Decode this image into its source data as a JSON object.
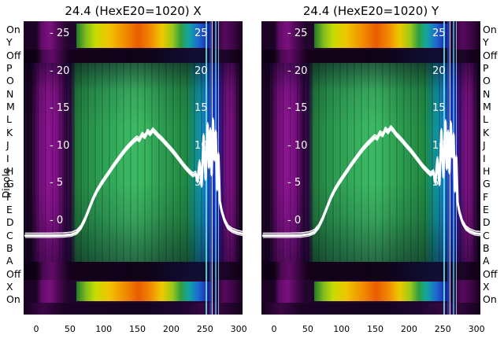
{
  "figure": {
    "left_axis_label": "Dipole",
    "row_labels": [
      "On",
      "Y",
      "Off",
      "P",
      "O",
      "N",
      "M",
      "L",
      "K",
      "J",
      "I",
      "H",
      "G",
      "F",
      "E",
      "D",
      "C",
      "B",
      "A",
      "Off",
      "X",
      "On"
    ],
    "background": "#ffffff"
  },
  "x_ticks": [
    "0",
    "50",
    "100",
    "150",
    "200",
    "250",
    "300"
  ],
  "inner_ticks_left": [
    "- 25",
    "- 20",
    "- 15",
    "- 10",
    "- 5",
    "- 0"
  ],
  "inner_ticks_right": [
    "25",
    "20",
    "15",
    "10",
    "5"
  ],
  "chart_data": [
    {
      "type": "heatmap",
      "title": "24.4 (HexE20=1020) X",
      "x_axis": {
        "ticks": [
          0,
          50,
          100,
          150,
          200,
          250,
          300
        ],
        "range": [
          -16,
          312
        ]
      },
      "inner_value_ticks": [
        25,
        20,
        15,
        10,
        5,
        0
      ],
      "row_categories_top_to_bottom": [
        "On",
        "Y",
        "Off",
        "P",
        "O",
        "N",
        "M",
        "L",
        "K",
        "J",
        "I",
        "H",
        "G",
        "F",
        "E",
        "D",
        "C",
        "B",
        "A",
        "Off",
        "X",
        "On"
      ],
      "palette": {
        "dark_purple": "#1a0322",
        "magenta_column": "#7c1080",
        "green_field": "#2fa455",
        "bright_green": "#3cba62",
        "teal": "#0f93a5",
        "blue": "#2336c4",
        "rainbow_band": [
          "#1f7a26",
          "#c8dc02",
          "#f0c400",
          "#e85c00",
          "#f0c400",
          "#9cc818",
          "#2f9e40",
          "#12a5a0",
          "#1b6ad0",
          "#2030b0"
        ],
        "overlay_line": "#ffffff"
      },
      "bands_top_to_bottom": [
        {
          "rows": "On/Y",
          "appearance": "bright rainbow band on dark purple"
        },
        {
          "rows": "Off",
          "appearance": "very dark"
        },
        {
          "rows": "P..A",
          "appearance": "green field, magenta edge columns, teal-blue striped region near x=240-270"
        },
        {
          "rows": "Off",
          "appearance": "very dark"
        },
        {
          "rows": "X",
          "appearance": "bright rainbow band"
        },
        {
          "rows": "On",
          "appearance": "dark purple"
        }
      ],
      "overlay_series": [
        {
          "name": "white-profile",
          "points": [
            [
              -16,
              -2
            ],
            [
              0,
              -2
            ],
            [
              20,
              -2
            ],
            [
              40,
              -1.95
            ],
            [
              52,
              -1.85
            ],
            [
              60,
              -1.55
            ],
            [
              66,
              -0.95
            ],
            [
              72,
              0.1
            ],
            [
              78,
              1.45
            ],
            [
              84,
              2.85
            ],
            [
              90,
              3.95
            ],
            [
              96,
              4.85
            ],
            [
              102,
              5.65
            ],
            [
              108,
              6.45
            ],
            [
              114,
              7.25
            ],
            [
              120,
              8.0
            ],
            [
              126,
              8.75
            ],
            [
              132,
              9.45
            ],
            [
              138,
              10.05
            ],
            [
              144,
              10.6
            ],
            [
              149,
              11.0
            ],
            [
              153,
              10.8
            ],
            [
              157,
              11.5
            ],
            [
              161,
              11.2
            ],
            [
              165,
              11.9
            ],
            [
              169,
              11.6
            ],
            [
              173,
              12.1
            ],
            [
              177,
              11.7
            ],
            [
              181,
              11.3
            ],
            [
              185,
              11.0
            ],
            [
              190,
              10.5
            ],
            [
              196,
              9.9
            ],
            [
              202,
              9.3
            ],
            [
              208,
              8.6
            ],
            [
              214,
              7.9
            ],
            [
              220,
              7.2
            ],
            [
              226,
              6.6
            ],
            [
              232,
              6.1
            ],
            [
              236,
              6.3
            ],
            [
              239,
              5.3
            ],
            [
              242,
              7.8
            ],
            [
              245,
              4.7
            ],
            [
              248,
              11.3
            ],
            [
              251,
              5.6
            ],
            [
              254,
              12.8
            ],
            [
              256,
              7.2
            ],
            [
              258,
              12.1
            ],
            [
              260,
              6.2
            ],
            [
              262,
              13.4
            ],
            [
              264,
              8.2
            ],
            [
              266,
              11.8
            ],
            [
              268,
              4.2
            ],
            [
              270,
              8.8
            ],
            [
              272,
              2.6
            ],
            [
              275,
              1.2
            ],
            [
              279,
              0.0
            ],
            [
              284,
              -0.9
            ],
            [
              290,
              -1.3
            ],
            [
              298,
              -1.6
            ],
            [
              308,
              -1.8
            ],
            [
              312,
              -1.8
            ]
          ]
        }
      ]
    },
    {
      "type": "heatmap",
      "title": "24.4 (HexE20=1020) Y",
      "x_axis": {
        "ticks": [
          0,
          50,
          100,
          150,
          200,
          250,
          300
        ],
        "range": [
          -16,
          312
        ]
      },
      "inner_value_ticks": [
        25,
        20,
        15,
        10,
        5,
        0
      ],
      "row_categories_top_to_bottom": [
        "On",
        "Y",
        "Off",
        "P",
        "O",
        "N",
        "M",
        "L",
        "K",
        "J",
        "I",
        "H",
        "G",
        "F",
        "E",
        "D",
        "C",
        "B",
        "A",
        "Off",
        "X",
        "On"
      ],
      "palette": {
        "dark_purple": "#1a0322",
        "magenta_column": "#7c1080",
        "green_field": "#2fa455",
        "bright_green": "#3cba62",
        "teal": "#0f93a5",
        "blue": "#2336c4",
        "rainbow_band": [
          "#1f7a26",
          "#c8dc02",
          "#f0c400",
          "#e85c00",
          "#f0c400",
          "#9cc818",
          "#2f9e40",
          "#12a5a0",
          "#1b6ad0",
          "#2030b0"
        ],
        "overlay_line": "#ffffff"
      },
      "bands_top_to_bottom": [
        {
          "rows": "On/Y",
          "appearance": "bright rainbow band on dark purple"
        },
        {
          "rows": "Off",
          "appearance": "very dark"
        },
        {
          "rows": "P..A",
          "appearance": "green field, magenta edge columns, teal-blue striped region near x=240-270"
        },
        {
          "rows": "Off",
          "appearance": "very dark"
        },
        {
          "rows": "X",
          "appearance": "bright rainbow band"
        },
        {
          "rows": "On",
          "appearance": "dark purple"
        }
      ],
      "overlay_series": [
        {
          "name": "white-profile",
          "points": [
            [
              -16,
              -2
            ],
            [
              0,
              -2
            ],
            [
              20,
              -2
            ],
            [
              40,
              -1.95
            ],
            [
              52,
              -1.8
            ],
            [
              60,
              -1.5
            ],
            [
              66,
              -0.85
            ],
            [
              72,
              0.25
            ],
            [
              78,
              1.6
            ],
            [
              84,
              3.0
            ],
            [
              90,
              4.1
            ],
            [
              96,
              5.0
            ],
            [
              102,
              5.8
            ],
            [
              108,
              6.6
            ],
            [
              114,
              7.4
            ],
            [
              120,
              8.15
            ],
            [
              126,
              8.9
            ],
            [
              132,
              9.6
            ],
            [
              138,
              10.2
            ],
            [
              144,
              10.75
            ],
            [
              149,
              11.2
            ],
            [
              153,
              11.0
            ],
            [
              157,
              11.7
            ],
            [
              161,
              11.45
            ],
            [
              165,
              12.2
            ],
            [
              169,
              11.85
            ],
            [
              173,
              12.4
            ],
            [
              177,
              12.0
            ],
            [
              181,
              11.5
            ],
            [
              185,
              11.15
            ],
            [
              190,
              10.65
            ],
            [
              196,
              10.0
            ],
            [
              202,
              9.4
            ],
            [
              208,
              8.7
            ],
            [
              214,
              8.0
            ],
            [
              220,
              7.3
            ],
            [
              226,
              6.7
            ],
            [
              232,
              6.2
            ],
            [
              236,
              6.5
            ],
            [
              239,
              5.1
            ],
            [
              242,
              8.2
            ],
            [
              245,
              4.9
            ],
            [
              248,
              12.0
            ],
            [
              251,
              5.9
            ],
            [
              254,
              13.2
            ],
            [
              256,
              7.0
            ],
            [
              258,
              11.8
            ],
            [
              260,
              6.5
            ],
            [
              262,
              13.0
            ],
            [
              264,
              8.6
            ],
            [
              266,
              11.4
            ],
            [
              268,
              4.0
            ],
            [
              270,
              8.4
            ],
            [
              272,
              2.4
            ],
            [
              275,
              1.0
            ],
            [
              279,
              -0.2
            ],
            [
              284,
              -1.0
            ],
            [
              290,
              -1.4
            ],
            [
              298,
              -1.7
            ],
            [
              308,
              -1.8
            ],
            [
              312,
              -1.8
            ]
          ]
        }
      ]
    }
  ]
}
